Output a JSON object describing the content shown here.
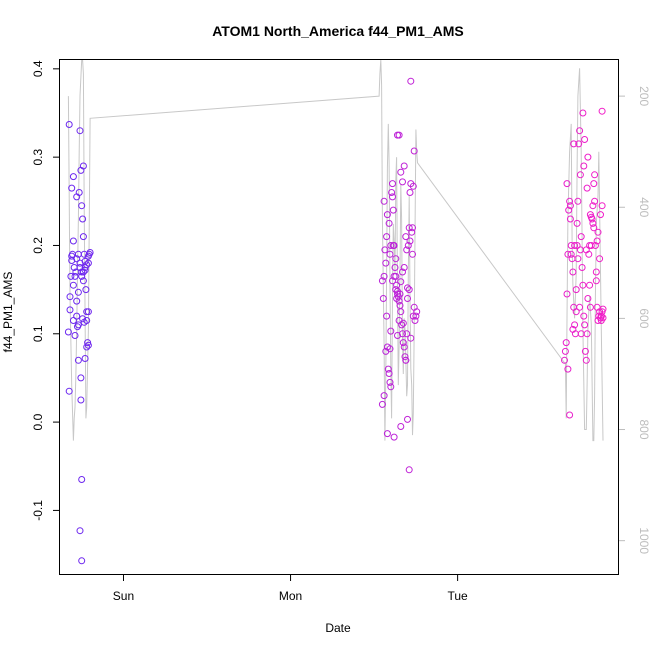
{
  "chart_data": {
    "type": "scatter",
    "title": "ATOM1 North_America f44_PM1_AMS",
    "xlabel": "Date",
    "ylabel": "f44_PM1_AMS",
    "x_ticks": [
      "Sun",
      "Mon",
      "Tue"
    ],
    "x_tick_values": [
      3.0,
      4.0,
      5.0
    ],
    "xlim": [
      2.62,
      5.96
    ],
    "ylim": [
      -0.172,
      0.41
    ],
    "y_ticks": [
      -0.1,
      0.0,
      0.1,
      0.2,
      0.3,
      0.4
    ],
    "y_tick_labels": [
      "-0.1",
      "0.0",
      "0.1",
      "0.2",
      "0.3",
      "0.4"
    ],
    "y2lim": [
      1060,
      135
    ],
    "y2_ticks": [
      200,
      400,
      600,
      800,
      1000
    ],
    "y2_tick_labels": [
      "200",
      "400",
      "600",
      "800",
      "1000"
    ],
    "x_unit_note": "days, Sun 00:00 = 3.0",
    "colors": {
      "early": "#6a28f0",
      "late": "#f21ec8",
      "line": "#c8c8c8",
      "axis": "#000000",
      "axis2": "#bdbdbd"
    },
    "grid": false,
    "legend": "none",
    "series": [
      {
        "kind": "points",
        "x": [
          2.67,
          2.675,
          2.68,
          2.685,
          2.69,
          2.695,
          2.7,
          2.705,
          2.71,
          2.715,
          2.72,
          2.725,
          2.73,
          2.735,
          2.74,
          2.745,
          2.75,
          2.755,
          2.76,
          2.765,
          2.77,
          2.775,
          2.78,
          2.785,
          2.79,
          2.795,
          2.8,
          2.675,
          2.69,
          2.7,
          2.72,
          2.74,
          2.75,
          2.76,
          2.78,
          2.79,
          2.71,
          2.73,
          2.745,
          2.77,
          2.68,
          2.7,
          2.73,
          2.755,
          2.765,
          2.78,
          2.69,
          2.72,
          2.74,
          2.75,
          2.76,
          2.77,
          2.78,
          2.79,
          2.7,
          2.73,
          2.745,
          2.76,
          2.79,
          2.72,
          2.75,
          2.74,
          2.75,
          2.77
        ],
        "y": [
          0.102,
          0.035,
          0.142,
          0.165,
          0.183,
          0.19,
          0.205,
          0.175,
          0.165,
          0.17,
          0.12,
          0.108,
          0.19,
          0.26,
          0.33,
          0.285,
          0.245,
          0.23,
          0.21,
          0.19,
          0.175,
          0.15,
          0.125,
          0.09,
          0.087,
          0.19,
          0.192,
          0.337,
          0.265,
          0.278,
          0.255,
          0.18,
          0.17,
          0.16,
          0.115,
          0.125,
          0.098,
          0.07,
          0.05,
          0.072,
          0.127,
          0.155,
          0.147,
          0.117,
          0.113,
          0.085,
          0.188,
          0.185,
          0.175,
          0.165,
          0.17,
          0.182,
          0.178,
          0.188,
          0.115,
          0.11,
          0.025,
          0.29,
          0.18,
          0.137,
          -0.065,
          -0.123,
          -0.157,
          0.172
        ]
      },
      {
        "kind": "points",
        "x": [
          4.55,
          4.555,
          4.56,
          4.565,
          4.57,
          4.575,
          4.58,
          4.585,
          4.59,
          4.595,
          4.6,
          4.605,
          4.61,
          4.615,
          4.62,
          4.625,
          4.63,
          4.635,
          4.64,
          4.645,
          4.65,
          4.655,
          4.66,
          4.665,
          4.67,
          4.675,
          4.68,
          4.685,
          4.69,
          4.695,
          4.7,
          4.705,
          4.71,
          4.715,
          4.72,
          4.725,
          4.73,
          4.735,
          4.74,
          4.745,
          4.75,
          4.755,
          4.56,
          4.58,
          4.6,
          4.62,
          4.64,
          4.66,
          4.68,
          4.7,
          4.72,
          4.57,
          4.59,
          4.61,
          4.63,
          4.65,
          4.67,
          4.69,
          4.71,
          4.73,
          4.55,
          4.575,
          4.595,
          4.615,
          4.635,
          4.655,
          4.675,
          4.695,
          4.715,
          4.735,
          4.56,
          4.6,
          4.64,
          4.68,
          4.72,
          4.66,
          4.62,
          4.58,
          4.7,
          4.74,
          4.61,
          4.63,
          4.65,
          4.67,
          4.69,
          4.71,
          4.595,
          4.64,
          4.66
        ],
        "y": [
          0.16,
          0.14,
          0.25,
          0.195,
          0.18,
          0.12,
          0.085,
          0.06,
          0.055,
          0.045,
          0.04,
          0.26,
          0.27,
          0.24,
          0.2,
          0.175,
          0.165,
          0.155,
          0.148,
          0.142,
          0.137,
          0.132,
          0.125,
          0.11,
          0.1,
          0.09,
          0.085,
          0.074,
          0.07,
          0.1,
          0.14,
          0.2,
          0.22,
          0.26,
          0.27,
          0.215,
          0.19,
          0.12,
          0.13,
          0.115,
          0.12,
          0.125,
          0.03,
          0.235,
          0.2,
          0.165,
          0.325,
          0.283,
          0.175,
          0.152,
          0.095,
          0.08,
          0.225,
          0.255,
          0.185,
          0.325,
          0.272,
          0.21,
          0.15,
          0.22,
          0.02,
          0.21,
          0.19,
          0.2,
          0.14,
          0.145,
          0.112,
          0.195,
          0.205,
          0.267,
          0.165,
          0.103,
          0.145,
          0.29,
          0.386,
          -0.005,
          -0.017,
          -0.013,
          0.003,
          0.307,
          0.16,
          0.15,
          0.115,
          0.17,
          0.07,
          -0.054,
          0.083,
          0.098,
          0.159
        ]
      },
      {
        "kind": "points",
        "x": [
          5.64,
          5.645,
          5.65,
          5.655,
          5.66,
          5.665,
          5.67,
          5.675,
          5.68,
          5.685,
          5.69,
          5.695,
          5.7,
          5.705,
          5.71,
          5.715,
          5.72,
          5.725,
          5.73,
          5.735,
          5.74,
          5.745,
          5.75,
          5.755,
          5.76,
          5.765,
          5.77,
          5.775,
          5.78,
          5.785,
          5.79,
          5.795,
          5.8,
          5.805,
          5.81,
          5.815,
          5.82,
          5.825,
          5.83,
          5.835,
          5.84,
          5.845,
          5.85,
          5.855,
          5.86,
          5.865,
          5.655,
          5.675,
          5.695,
          5.715,
          5.735,
          5.755,
          5.775,
          5.795,
          5.815,
          5.835,
          5.855,
          5.67,
          5.69,
          5.71,
          5.73,
          5.75,
          5.77,
          5.79,
          5.81,
          5.83,
          5.85,
          5.66,
          5.7,
          5.74,
          5.78,
          5.82,
          5.86,
          5.68,
          5.72,
          5.76,
          5.8,
          5.84,
          5.86,
          5.865,
          5.87,
          5.87,
          5.865
        ],
        "y": [
          0.07,
          0.08,
          0.09,
          0.145,
          0.19,
          0.24,
          0.25,
          0.23,
          0.2,
          0.185,
          0.17,
          0.13,
          0.11,
          0.1,
          0.15,
          0.2,
          0.25,
          0.315,
          0.33,
          0.28,
          0.21,
          0.175,
          0.155,
          0.12,
          0.11,
          0.08,
          0.07,
          0.1,
          0.14,
          0.19,
          0.2,
          0.235,
          0.232,
          0.23,
          0.225,
          0.22,
          0.25,
          0.2,
          0.16,
          0.13,
          0.115,
          0.12,
          0.125,
          0.118,
          0.12,
          0.125,
          0.27,
          0.245,
          0.315,
          0.225,
          0.195,
          0.29,
          0.265,
          0.13,
          0.27,
          0.205,
          0.235,
          0.008,
          0.105,
          0.125,
          0.13,
          0.35,
          0.195,
          0.155,
          0.245,
          0.17,
          0.185,
          0.06,
          0.2,
          0.1,
          0.3,
          0.28,
          0.115,
          0.19,
          0.185,
          0.32,
          0.2,
          0.215,
          0.12,
          0.352,
          0.128,
          0.118,
          0.245
        ]
      },
      {
        "kind": "line",
        "x": [
          2.67,
          2.68,
          2.69,
          2.7,
          2.705,
          2.71,
          2.715,
          2.72,
          2.725,
          2.73,
          2.735,
          2.74,
          2.75,
          2.755,
          2.76,
          2.765,
          2.77,
          2.775,
          2.78,
          2.79,
          2.8,
          4.53,
          4.535,
          4.54,
          4.545,
          4.55,
          4.56,
          4.565,
          4.57,
          4.575,
          4.58,
          4.585,
          4.59,
          4.595,
          4.6,
          4.605,
          4.61,
          4.615,
          4.62,
          4.625,
          4.63,
          4.635,
          4.64,
          4.645,
          4.65,
          4.655,
          4.66,
          4.665,
          4.67,
          4.675,
          4.68,
          4.685,
          4.69,
          4.695,
          4.7,
          4.705,
          4.71,
          4.715,
          4.72,
          4.725,
          4.73,
          4.735,
          4.74,
          4.745,
          4.75,
          4.755,
          4.76,
          5.64,
          5.645,
          5.65,
          5.655,
          5.66,
          5.67,
          5.68,
          5.685,
          5.69,
          5.7,
          5.71,
          5.715,
          5.72,
          5.73,
          5.74,
          5.745,
          5.75,
          5.76,
          5.77,
          5.775,
          5.78,
          5.79,
          5.8,
          5.81,
          5.815,
          5.82,
          5.825,
          5.83,
          5.84,
          5.845,
          5.85,
          5.86,
          5.87
        ],
        "y2": [
          200,
          560,
          720,
          820,
          780,
          760,
          700,
          620,
          520,
          420,
          300,
          200,
          120,
          90,
          160,
          400,
          600,
          780,
          760,
          620,
          240,
          200,
          160,
          110,
          180,
          420,
          650,
          820,
          700,
          520,
          330,
          250,
          320,
          540,
          690,
          780,
          560,
          430,
          460,
          520,
          350,
          310,
          560,
          720,
          650,
          520,
          360,
          420,
          640,
          700,
          600,
          620,
          670,
          740,
          720,
          520,
          380,
          560,
          690,
          720,
          810,
          770,
          620,
          450,
          260,
          300,
          320,
          680,
          680,
          780,
          600,
          420,
          300,
          250,
          460,
          540,
          600,
          520,
          330,
          200,
          150,
          300,
          460,
          620,
          800,
          800,
          720,
          620,
          560,
          610,
          820,
          820,
          740,
          560,
          430,
          380,
          300,
          400,
          620,
          820,
          420
        ]
      }
    ]
  }
}
